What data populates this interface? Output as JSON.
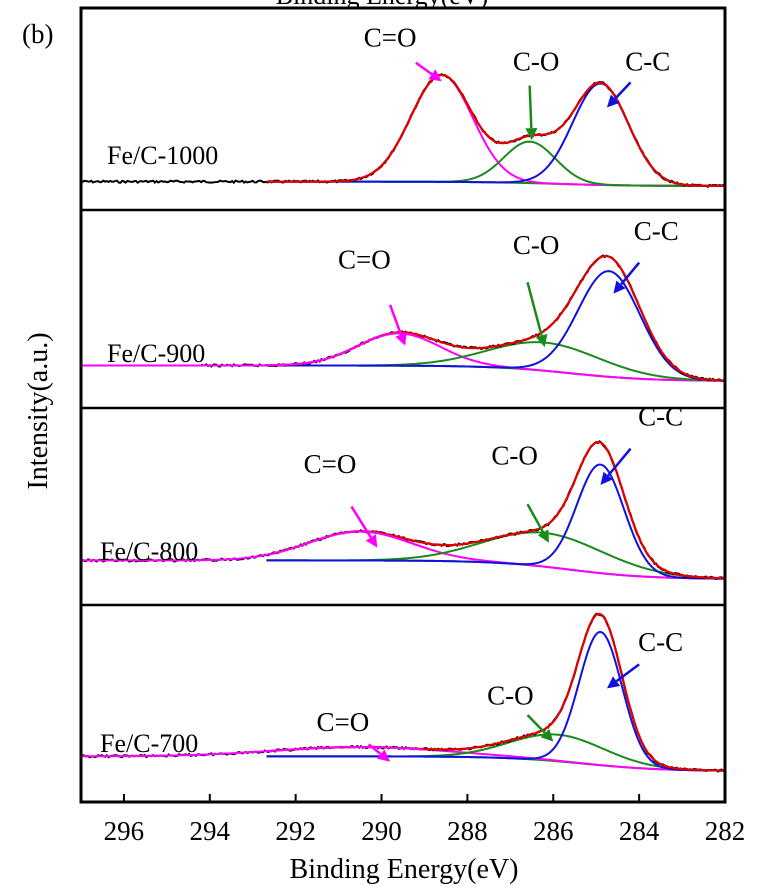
{
  "panel_label": "(b)",
  "top_title_fragment": "Binding Energy(eV)",
  "chart_data": {
    "type": "line",
    "xlabel": "Binding Energy(eV)",
    "ylabel": "Intensity(a.u.)",
    "xlim": [
      297,
      282
    ],
    "x_reversed": true,
    "xticks": [
      296,
      294,
      292,
      290,
      288,
      286,
      284,
      282
    ],
    "grid": false,
    "colors": {
      "raw": "#000000",
      "envelope": "#e00000",
      "cc": "#1010e0",
      "co": "#1a8a1a",
      "ceo": "#ff00ff",
      "baseline": "#1a8a1a"
    },
    "panels": [
      {
        "sample": "Fe/C-1000",
        "ymax": 1.1,
        "baseline_start": 2.5,
        "raw_xmin": 297,
        "cc": {
          "center": 284.9,
          "height": 0.93,
          "sigma": 0.65
        },
        "co": {
          "center": 286.55,
          "height": 0.38,
          "sigma": 0.6
        },
        "ceo": {
          "center": 288.6,
          "height": 0.98,
          "sigma": 0.72
        },
        "annotations": [
          {
            "label": "C=O",
            "color": "ceo",
            "text_x": 289.8,
            "text_y": 1.28,
            "arrow_from": [
              289.2,
              1.13
            ],
            "arrow_to": [
              288.6,
              0.96
            ]
          },
          {
            "label": "C-O",
            "color": "co",
            "text_x": 286.4,
            "text_y": 1.06,
            "arrow_from": [
              286.55,
              0.92
            ],
            "arrow_to": [
              286.5,
              0.42
            ]
          },
          {
            "label": "C-C",
            "color": "cc",
            "text_x": 283.8,
            "text_y": 1.06,
            "arrow_from": [
              284.2,
              0.95
            ],
            "arrow_to": [
              284.75,
              0.72
            ]
          }
        ]
      },
      {
        "sample": "Fe/C-900",
        "ymax": 1.1,
        "baseline_start": 2.5,
        "raw_xmin": 294.2,
        "cc": {
          "center": 284.7,
          "height": 0.75,
          "sigma": 0.72
        },
        "co": {
          "center": 286.2,
          "height": 0.2,
          "sigma": 1.3
        },
        "ceo": {
          "center": 289.6,
          "height": 0.23,
          "sigma": 0.95
        },
        "annotations": [
          {
            "label": "C=O",
            "color": "ceo",
            "text_x": 290.4,
            "text_y": 0.8,
            "arrow_from": [
              289.8,
              0.54
            ],
            "arrow_to": [
              289.45,
              0.25
            ]
          },
          {
            "label": "C-O",
            "color": "co",
            "text_x": 286.4,
            "text_y": 0.9,
            "arrow_from": [
              286.6,
              0.7
            ],
            "arrow_to": [
              286.2,
              0.24
            ]
          },
          {
            "label": "C-C",
            "color": "cc",
            "text_x": 283.6,
            "text_y": 1.0,
            "arrow_from": [
              284.0,
              0.84
            ],
            "arrow_to": [
              284.6,
              0.62
            ]
          }
        ]
      },
      {
        "sample": "Fe/C-800",
        "ymax": 1.45,
        "baseline_start": 2.5,
        "raw_xmin": 297,
        "cc": {
          "center": 284.9,
          "height": 0.9,
          "sigma": 0.55
        },
        "co": {
          "center": 286.2,
          "height": 0.28,
          "sigma": 1.4
        },
        "ceo": {
          "center": 290.5,
          "height": 0.24,
          "sigma": 1.2
        },
        "annotations": [
          {
            "label": "C=O",
            "color": "ceo",
            "text_x": 291.2,
            "text_y": 0.88,
            "arrow_from": [
              290.7,
              0.6
            ],
            "arrow_to": [
              290.1,
              0.26
            ]
          },
          {
            "label": "C-O",
            "color": "co",
            "text_x": 286.9,
            "text_y": 0.95,
            "arrow_from": [
              286.6,
              0.62
            ],
            "arrow_to": [
              286.1,
              0.3
            ]
          },
          {
            "label": "C-C",
            "color": "cc",
            "text_x": 283.5,
            "text_y": 1.27,
            "arrow_from": [
              284.2,
              1.08
            ],
            "arrow_to": [
              284.9,
              0.78
            ]
          }
        ]
      },
      {
        "sample": "Fe/C-700",
        "ymax": 1.2,
        "baseline_start": 2.5,
        "raw_xmin": 297,
        "cc": {
          "center": 284.9,
          "height": 1.0,
          "sigma": 0.5
        },
        "co": {
          "center": 285.9,
          "height": 0.2,
          "sigma": 1.1
        },
        "ceo": {
          "center": 290.5,
          "height": 0.07,
          "sigma": 2.0
        },
        "annotations": [
          {
            "label": "C=O",
            "color": "ceo",
            "text_x": 290.9,
            "text_y": 0.3,
            "arrow_from": [
              290.3,
              0.2
            ],
            "arrow_to": [
              289.8,
              0.07
            ]
          },
          {
            "label": "C-O",
            "color": "co",
            "text_x": 287.0,
            "text_y": 0.5,
            "arrow_from": [
              286.6,
              0.42
            ],
            "arrow_to": [
              286.0,
              0.22
            ]
          },
          {
            "label": "C-C",
            "color": "cc",
            "text_x": 283.5,
            "text_y": 0.9,
            "arrow_from": [
              284.0,
              0.8
            ],
            "arrow_to": [
              284.75,
              0.62
            ]
          }
        ]
      }
    ]
  }
}
